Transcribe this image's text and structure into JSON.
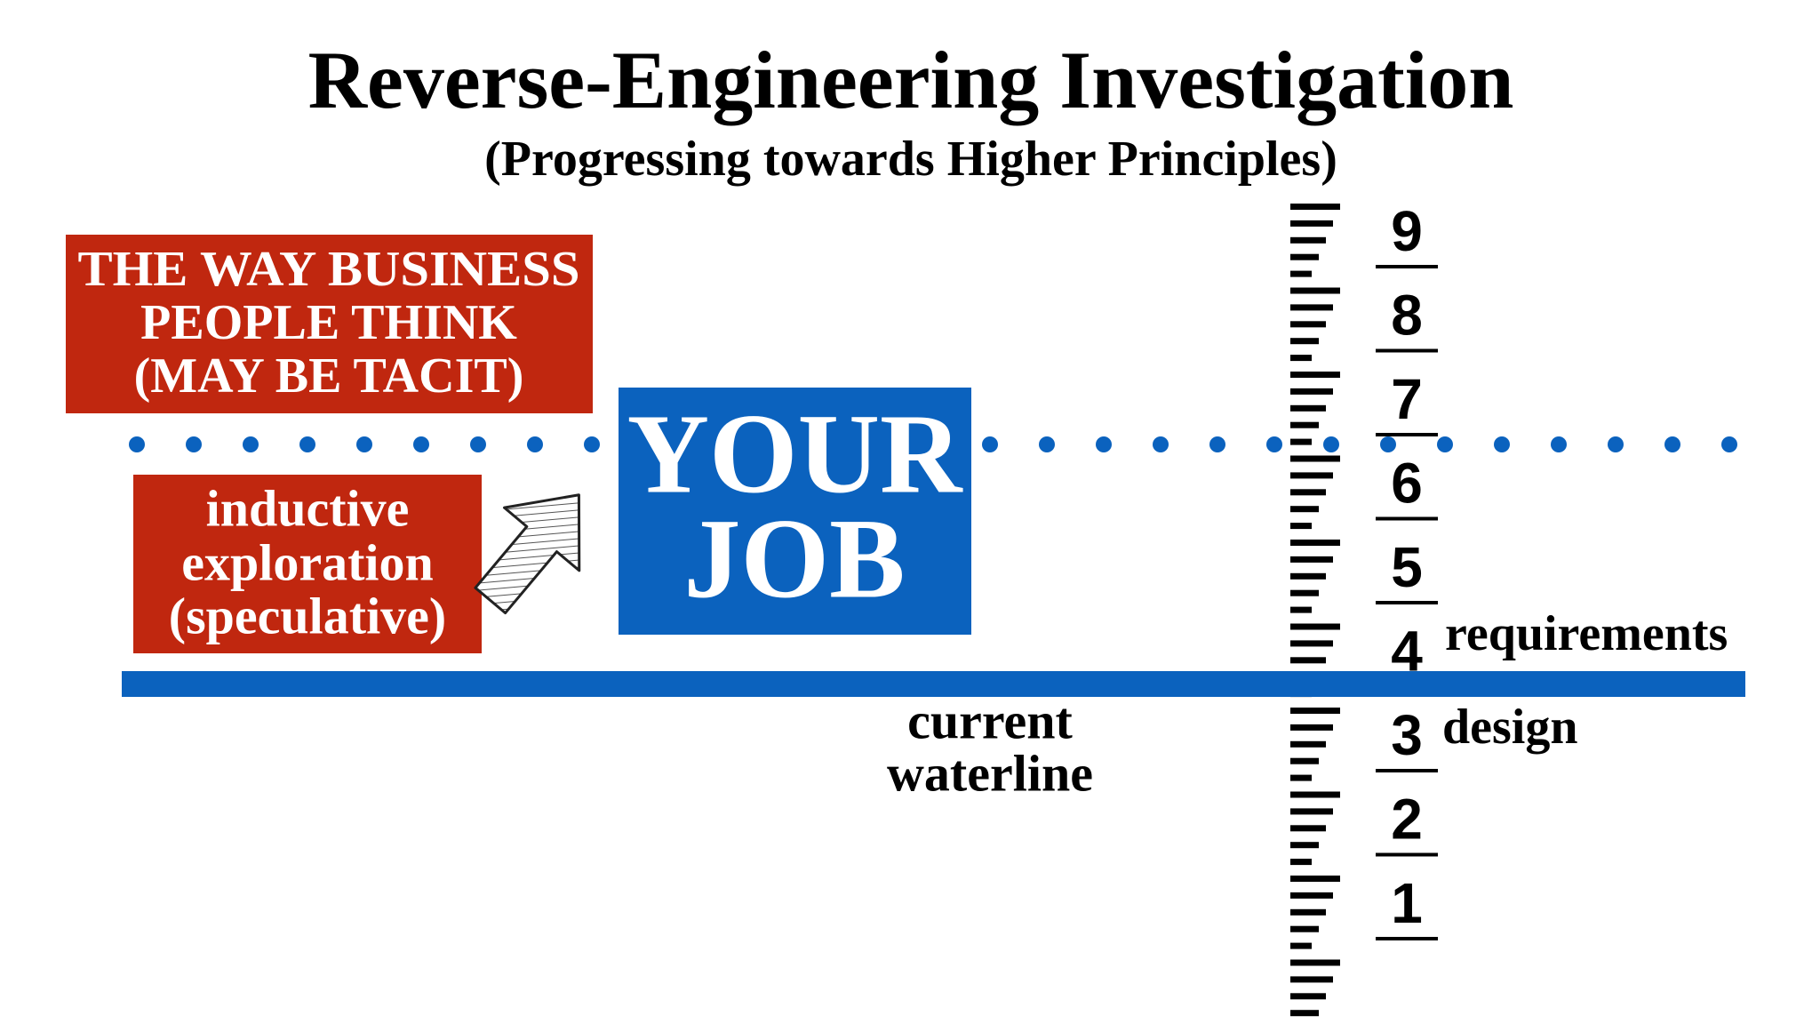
{
  "header": {
    "title": "Reverse-Engineering Investigation",
    "subtitle": "(Progressing towards Higher Principles)"
  },
  "business_box": {
    "lines": [
      "THE WAY BUSINESS",
      "PEOPLE THINK",
      "(MAY BE TACIT)"
    ]
  },
  "exploration_box": {
    "lines": [
      "inductive",
      "exploration",
      "(speculative)"
    ]
  },
  "job_box": {
    "lines": [
      "YOUR",
      "JOB"
    ]
  },
  "waterline": {
    "lines": [
      "current",
      "waterline"
    ]
  },
  "ruler": {
    "numbers": [
      "9",
      "8",
      "7",
      "6",
      "5",
      "4",
      "3",
      "2",
      "1"
    ]
  },
  "levels": {
    "requirements": "requirements",
    "design": "design"
  }
}
